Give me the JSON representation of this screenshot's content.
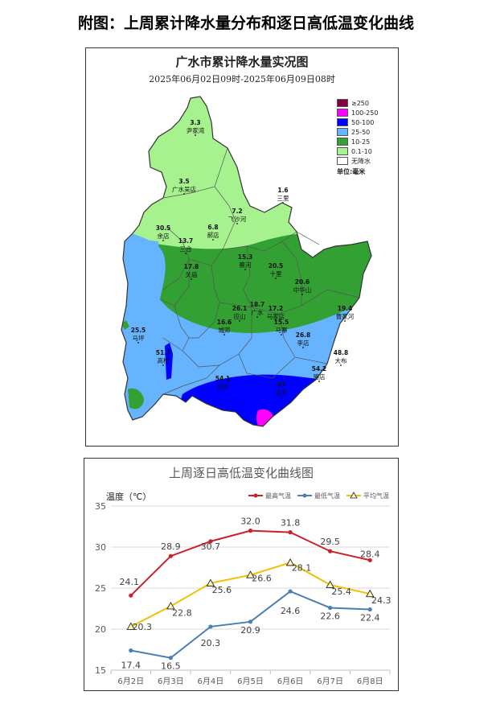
{
  "page_title": "附图：上周累计降水量分布和逐日高低温变化曲线",
  "map": {
    "title": "广水市累计降水量实况图",
    "subtitle": "2025年06月02日09时-2025年06月09日08时",
    "legend": [
      {
        "label": "≥250",
        "color": "#800040"
      },
      {
        "label": "100-250",
        "color": "#ff00ff"
      },
      {
        "label": "50-100",
        "color": "#0000ff"
      },
      {
        "label": "25-50",
        "color": "#66b3ff"
      },
      {
        "label": "10-25",
        "color": "#33a033"
      },
      {
        "label": "0.1-10",
        "color": "#a6f28f"
      },
      {
        "label": "无降水",
        "color": "#ffffff"
      }
    ],
    "unit": "单位:毫米",
    "stations": [
      {
        "value": "3.3",
        "name": "尹家湾"
      },
      {
        "value": "3.5",
        "name": "广水吴店"
      },
      {
        "value": "1.6",
        "name": "三里"
      },
      {
        "value": "7.2",
        "name": "飞沙河"
      },
      {
        "value": "6.8",
        "name": "郝店"
      },
      {
        "value": "30.5",
        "name": "余店"
      },
      {
        "value": "13.7",
        "name": "三合"
      },
      {
        "value": "17.8",
        "name": "关庙"
      },
      {
        "value": "15.3",
        "name": "蔡河"
      },
      {
        "value": "20.5",
        "name": "十里"
      },
      {
        "value": "20.6",
        "name": "中华山"
      },
      {
        "value": "19.4",
        "name": "曹家河"
      },
      {
        "value": "26.1",
        "name": "应山"
      },
      {
        "value": "18.7",
        "name": "广水"
      },
      {
        "value": "17.2",
        "name": "马家店"
      },
      {
        "value": "15.5",
        "name": "马寨"
      },
      {
        "value": "16.6",
        "name": "城郊"
      },
      {
        "value": "25.5",
        "name": "马坪"
      },
      {
        "value": "26.8",
        "name": "李店"
      },
      {
        "value": "48.8",
        "name": "大布"
      },
      {
        "value": "51.7",
        "name": "高桥"
      },
      {
        "value": "54.1",
        "name": "长岭"
      },
      {
        "value": "54.2",
        "name": "骆店"
      },
      {
        "value": "67",
        "name": "太平"
      }
    ]
  },
  "chart_data": {
    "type": "line",
    "title": "上周逐日高低温变化曲线图",
    "ylabel": "温度（℃）",
    "categories": [
      "6月2日",
      "6月3日",
      "6月4日",
      "6月5日",
      "6月6日",
      "6月7日",
      "6月8日"
    ],
    "ylim": [
      15,
      35
    ],
    "yticks": [
      15,
      20,
      25,
      30,
      35
    ],
    "legend_position": "top-right",
    "series": [
      {
        "name": "最高气温",
        "color": "#cc1f2a",
        "marker": "circle",
        "values": [
          24.1,
          28.9,
          30.7,
          32.0,
          31.8,
          29.5,
          28.4
        ],
        "labels": [
          "24.1",
          "28.9",
          "30.7",
          "32.0",
          "31.8",
          "29.5",
          "28.4"
        ]
      },
      {
        "name": "最低气温",
        "color": "#4a7fb5",
        "marker": "circle",
        "values": [
          17.4,
          16.5,
          20.3,
          20.9,
          24.6,
          22.6,
          22.4
        ],
        "labels": [
          "17.4",
          "16.5",
          "20.3",
          "20.9",
          "24.6",
          "22.6",
          "22.4"
        ]
      },
      {
        "name": "平均气温",
        "color": "#f2c200",
        "marker": "triangle",
        "values": [
          20.3,
          22.8,
          25.6,
          26.6,
          28.1,
          25.4,
          24.3
        ],
        "labels": [
          "20.3",
          "22.8",
          "25.6",
          "26.6",
          "28.1",
          "25.4",
          "24.3"
        ]
      }
    ]
  }
}
